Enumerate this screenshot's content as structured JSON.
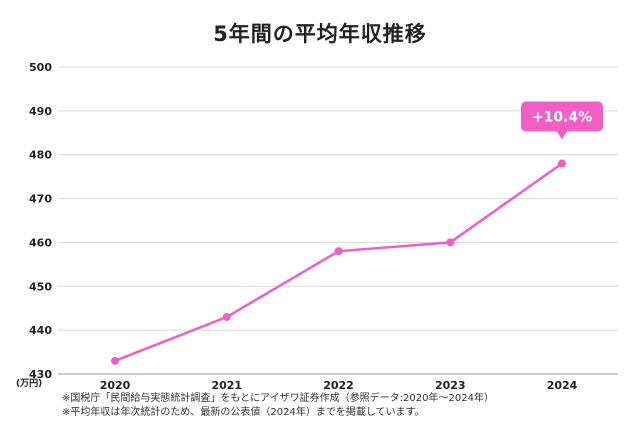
{
  "chart_data": {
    "type": "line",
    "title": "5年間の平均年収推移",
    "categories": [
      "2020",
      "2021",
      "2022",
      "2023",
      "2024"
    ],
    "series": [
      {
        "values": [
          433,
          443,
          458,
          460,
          478
        ]
      }
    ],
    "yticks": [
      430,
      440,
      450,
      460,
      470,
      480,
      490,
      500
    ],
    "ylim": [
      430,
      500
    ],
    "y_unit": "(万円)",
    "grid": true,
    "annotation": {
      "text": "+10.4%",
      "category": "2024"
    },
    "color": "#f25fc4"
  },
  "notes": [
    "※国税庁「民間給与実態統計調査」をもとにアイザワ証券作成（参照データ:2020年〜2024年）",
    "※平均年収は年次統計のため、最新の公表値（2024年）までを掲載しています。"
  ]
}
